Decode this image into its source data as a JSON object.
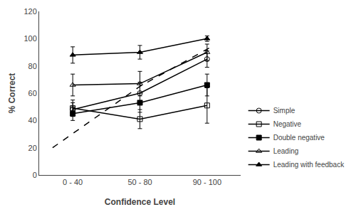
{
  "chart_data": {
    "type": "line",
    "categories": [
      "0 - 40",
      "50 - 80",
      "90 - 100"
    ],
    "xlabel": "Confidence Level",
    "ylabel": "% Correct",
    "xlim": [
      -0.5,
      2.5
    ],
    "ylim": [
      0,
      120
    ],
    "yticks": [
      0,
      20,
      40,
      60,
      80,
      100,
      120
    ],
    "grid": false,
    "legend": "lower right",
    "series": [
      {
        "name": "Simple",
        "color": "black",
        "marker": "circle-open",
        "line_style": "solid",
        "values": [
          48,
          60,
          85
        ],
        "yerr": [
          5,
          8,
          6
        ]
      },
      {
        "name": "Negative",
        "color": "black",
        "marker": "square-open",
        "line_style": "solid",
        "values": [
          49,
          41,
          51
        ],
        "yerr": [
          6,
          7,
          13
        ]
      },
      {
        "name": "Double negative",
        "color": "black",
        "marker": "square",
        "line_style": "solid",
        "values": [
          45,
          53,
          66
        ],
        "yerr": [
          5,
          7,
          8
        ]
      },
      {
        "name": "Leading",
        "color": "black",
        "marker": "triangle-up-open",
        "line_style": "solid",
        "values": [
          66,
          67,
          90
        ],
        "yerr": [
          8,
          9,
          6
        ]
      },
      {
        "name": "Leading with feedback",
        "color": "black",
        "marker": "triangle-up",
        "line_style": "solid",
        "values": [
          88,
          90,
          100
        ],
        "yerr": [
          6,
          5,
          2
        ]
      },
      {
        "color": "black",
        "line_style": "dashed",
        "x": [
          -0.3,
          1,
          2.1
        ],
        "values": [
          20,
          65,
          95
        ]
      }
    ]
  }
}
